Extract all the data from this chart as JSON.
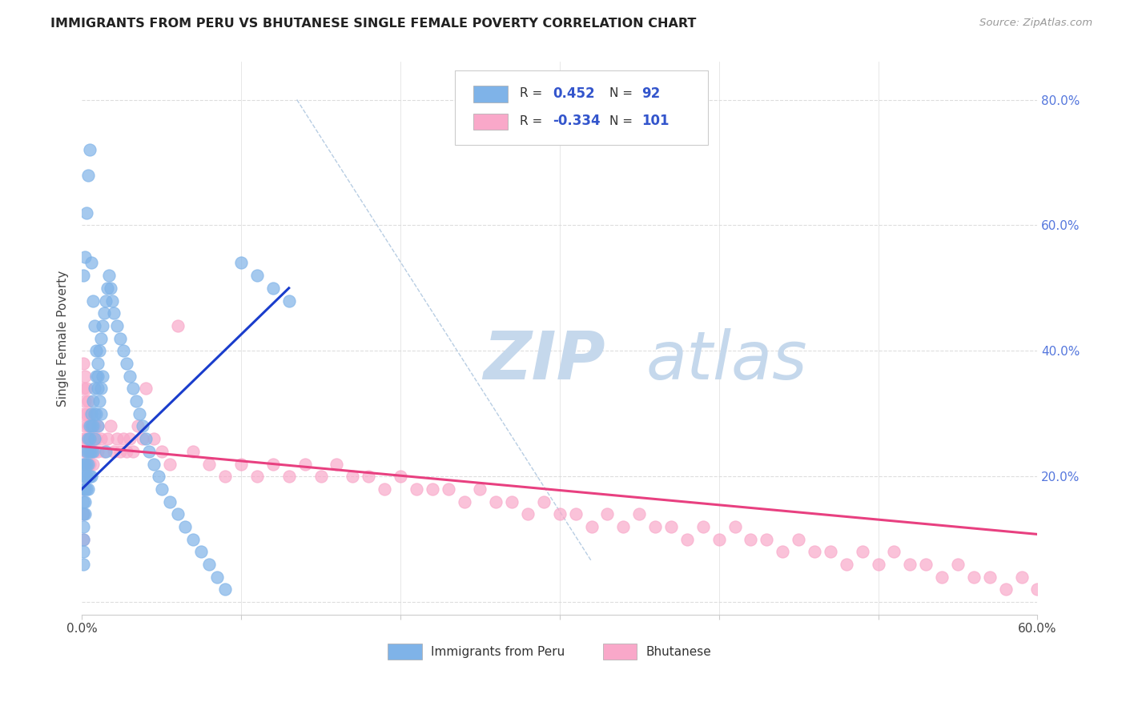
{
  "title": "IMMIGRANTS FROM PERU VS BHUTANESE SINGLE FEMALE POVERTY CORRELATION CHART",
  "source": "Source: ZipAtlas.com",
  "ylabel": "Single Female Poverty",
  "legend_label1": "Immigrants from Peru",
  "legend_label2": "Bhutanese",
  "r1": 0.452,
  "n1": 92,
  "r2": -0.334,
  "n2": 101,
  "xlim": [
    0.0,
    0.6
  ],
  "ylim": [
    -0.02,
    0.86
  ],
  "yticks": [
    0.0,
    0.2,
    0.4,
    0.6,
    0.8
  ],
  "ytick_labels": [
    "",
    "20.0%",
    "40.0%",
    "60.0%",
    "80.0%"
  ],
  "color_peru": "#7fb3e8",
  "color_bhutanese": "#f9a8c9",
  "color_peru_line": "#1a3dcc",
  "color_bhutanese_line": "#e84080",
  "color_dashed": "#b0c8e0",
  "watermark_zip": "#c5d8ec",
  "watermark_atlas": "#c5d8ec",
  "background_color": "#ffffff",
  "grid_color": "#dddddd",
  "peru_x": [
    0.001,
    0.001,
    0.001,
    0.001,
    0.001,
    0.001,
    0.001,
    0.001,
    0.001,
    0.002,
    0.002,
    0.002,
    0.002,
    0.002,
    0.003,
    0.003,
    0.003,
    0.003,
    0.004,
    0.004,
    0.004,
    0.004,
    0.005,
    0.005,
    0.005,
    0.005,
    0.006,
    0.006,
    0.006,
    0.006,
    0.007,
    0.007,
    0.007,
    0.008,
    0.008,
    0.008,
    0.009,
    0.009,
    0.01,
    0.01,
    0.01,
    0.011,
    0.011,
    0.012,
    0.012,
    0.013,
    0.013,
    0.014,
    0.015,
    0.016,
    0.017,
    0.018,
    0.019,
    0.02,
    0.022,
    0.024,
    0.026,
    0.028,
    0.03,
    0.032,
    0.034,
    0.036,
    0.038,
    0.04,
    0.042,
    0.045,
    0.048,
    0.05,
    0.055,
    0.06,
    0.065,
    0.07,
    0.075,
    0.08,
    0.085,
    0.09,
    0.1,
    0.11,
    0.12,
    0.13,
    0.001,
    0.002,
    0.003,
    0.004,
    0.005,
    0.006,
    0.007,
    0.008,
    0.009,
    0.01,
    0.012,
    0.015
  ],
  "peru_y": [
    0.22,
    0.2,
    0.18,
    0.16,
    0.14,
    0.12,
    0.1,
    0.08,
    0.06,
    0.22,
    0.2,
    0.18,
    0.16,
    0.14,
    0.24,
    0.22,
    0.2,
    0.18,
    0.26,
    0.24,
    0.22,
    0.18,
    0.28,
    0.26,
    0.24,
    0.2,
    0.3,
    0.28,
    0.24,
    0.2,
    0.32,
    0.28,
    0.24,
    0.34,
    0.3,
    0.26,
    0.36,
    0.3,
    0.38,
    0.34,
    0.28,
    0.4,
    0.32,
    0.42,
    0.34,
    0.44,
    0.36,
    0.46,
    0.48,
    0.5,
    0.52,
    0.5,
    0.48,
    0.46,
    0.44,
    0.42,
    0.4,
    0.38,
    0.36,
    0.34,
    0.32,
    0.3,
    0.28,
    0.26,
    0.24,
    0.22,
    0.2,
    0.18,
    0.16,
    0.14,
    0.12,
    0.1,
    0.08,
    0.06,
    0.04,
    0.02,
    0.54,
    0.52,
    0.5,
    0.48,
    0.52,
    0.55,
    0.62,
    0.68,
    0.72,
    0.54,
    0.48,
    0.44,
    0.4,
    0.36,
    0.3,
    0.24
  ],
  "bhutanese_x": [
    0.001,
    0.001,
    0.001,
    0.001,
    0.001,
    0.001,
    0.001,
    0.001,
    0.002,
    0.002,
    0.002,
    0.002,
    0.003,
    0.003,
    0.003,
    0.004,
    0.004,
    0.005,
    0.005,
    0.005,
    0.006,
    0.006,
    0.007,
    0.007,
    0.008,
    0.008,
    0.009,
    0.01,
    0.01,
    0.012,
    0.014,
    0.016,
    0.018,
    0.02,
    0.022,
    0.024,
    0.026,
    0.028,
    0.03,
    0.032,
    0.035,
    0.038,
    0.04,
    0.045,
    0.05,
    0.055,
    0.06,
    0.07,
    0.08,
    0.09,
    0.1,
    0.11,
    0.12,
    0.13,
    0.14,
    0.15,
    0.16,
    0.17,
    0.18,
    0.19,
    0.2,
    0.21,
    0.22,
    0.23,
    0.24,
    0.25,
    0.26,
    0.27,
    0.28,
    0.29,
    0.3,
    0.31,
    0.32,
    0.33,
    0.34,
    0.35,
    0.36,
    0.37,
    0.38,
    0.39,
    0.4,
    0.41,
    0.42,
    0.43,
    0.44,
    0.45,
    0.46,
    0.47,
    0.48,
    0.49,
    0.5,
    0.51,
    0.52,
    0.53,
    0.54,
    0.55,
    0.56,
    0.57,
    0.58,
    0.59,
    0.6
  ],
  "bhutanese_y": [
    0.38,
    0.34,
    0.3,
    0.26,
    0.22,
    0.18,
    0.14,
    0.1,
    0.36,
    0.32,
    0.28,
    0.24,
    0.34,
    0.3,
    0.26,
    0.32,
    0.28,
    0.3,
    0.26,
    0.22,
    0.28,
    0.24,
    0.26,
    0.22,
    0.28,
    0.24,
    0.26,
    0.28,
    0.24,
    0.26,
    0.24,
    0.26,
    0.28,
    0.24,
    0.26,
    0.24,
    0.26,
    0.24,
    0.26,
    0.24,
    0.28,
    0.26,
    0.34,
    0.26,
    0.24,
    0.22,
    0.44,
    0.24,
    0.22,
    0.2,
    0.22,
    0.2,
    0.22,
    0.2,
    0.22,
    0.2,
    0.22,
    0.2,
    0.2,
    0.18,
    0.2,
    0.18,
    0.18,
    0.18,
    0.16,
    0.18,
    0.16,
    0.16,
    0.14,
    0.16,
    0.14,
    0.14,
    0.12,
    0.14,
    0.12,
    0.14,
    0.12,
    0.12,
    0.1,
    0.12,
    0.1,
    0.12,
    0.1,
    0.1,
    0.08,
    0.1,
    0.08,
    0.08,
    0.06,
    0.08,
    0.06,
    0.08,
    0.06,
    0.06,
    0.04,
    0.06,
    0.04,
    0.04,
    0.02,
    0.04,
    0.02
  ],
  "peru_line_x": [
    0.0,
    0.13
  ],
  "peru_line_y": [
    0.18,
    0.5
  ],
  "bhut_line_x": [
    0.0,
    0.6
  ],
  "bhut_line_y": [
    0.248,
    0.108
  ],
  "dash_line_x": [
    0.135,
    0.32
  ],
  "dash_line_y": [
    0.8,
    0.065
  ]
}
